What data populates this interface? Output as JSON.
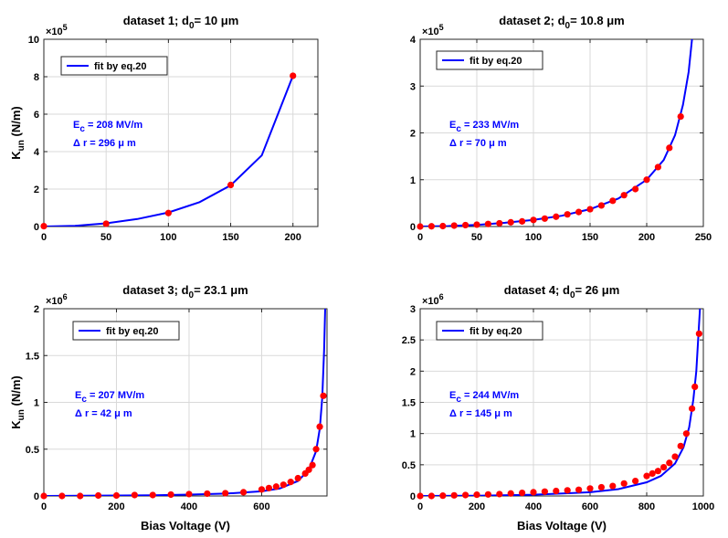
{
  "chart_data": [
    {
      "type": "scatter+line",
      "title": "dataset 1;    d",
      "title_sub": "0",
      "title_tail": "= 10 μm",
      "xlabel": "",
      "ylabel": "K",
      "ylabel_sub": "un",
      "ylabel_tail": "   (N/m)",
      "xlim": [
        0,
        220
      ],
      "ylim": [
        0,
        10
      ],
      "xticks": [
        0,
        50,
        100,
        150,
        200
      ],
      "yticks": [
        0,
        2,
        4,
        6,
        8,
        10
      ],
      "xtick_labels": [
        "0",
        "50",
        "100",
        "150",
        "200"
      ],
      "ytick_labels": [
        "0",
        "2",
        "4",
        "6",
        "8",
        "10"
      ],
      "y_exponent_base": "×10",
      "y_exponent_power": "5",
      "legend": "fit by eq.20",
      "annotation_ec": "E",
      "annotation_ec_sub": "c",
      "annotation_ec_tail": " = 208 MV/m",
      "annotation_dr": "Δ r = 296 μ m",
      "series": [
        {
          "name": "data",
          "x": [
            0,
            50,
            100,
            150,
            200
          ],
          "y": [
            0.02,
            0.15,
            0.72,
            2.22,
            8.05
          ]
        },
        {
          "name": "fit by eq.20",
          "x": [
            0,
            25,
            50,
            75,
            100,
            125,
            150,
            175,
            200
          ],
          "y": [
            0.0,
            0.04,
            0.17,
            0.4,
            0.75,
            1.3,
            2.2,
            3.8,
            8.05
          ]
        }
      ]
    },
    {
      "type": "scatter+line",
      "title": "dataset 2;    d",
      "title_sub": "0",
      "title_tail": "= 10.8 μm",
      "xlabel": "",
      "ylabel": "",
      "xlim": [
        0,
        250
      ],
      "ylim": [
        0,
        4
      ],
      "xticks": [
        0,
        50,
        100,
        150,
        200,
        250
      ],
      "yticks": [
        0,
        1,
        2,
        3,
        4
      ],
      "xtick_labels": [
        "0",
        "50",
        "100",
        "150",
        "200",
        "250"
      ],
      "ytick_labels": [
        "0",
        "1",
        "2",
        "3",
        "4"
      ],
      "y_exponent_base": "×10",
      "y_exponent_power": "5",
      "legend": "fit by eq.20",
      "annotation_ec": "E",
      "annotation_ec_sub": "c",
      "annotation_ec_tail": " = 233 MV/m",
      "annotation_dr": "Δ r = 70 μ m",
      "series": [
        {
          "name": "data",
          "x": [
            0,
            10,
            20,
            30,
            40,
            50,
            60,
            70,
            80,
            90,
            100,
            110,
            120,
            130,
            140,
            150,
            160,
            170,
            180,
            190,
            200,
            210,
            220,
            230
          ],
          "y": [
            0.0,
            0.005,
            0.01,
            0.02,
            0.03,
            0.04,
            0.055,
            0.07,
            0.09,
            0.11,
            0.14,
            0.17,
            0.21,
            0.26,
            0.31,
            0.37,
            0.45,
            0.55,
            0.67,
            0.8,
            1.0,
            1.27,
            1.68,
            2.35
          ]
        },
        {
          "name": "fit by eq.20",
          "x": [
            0,
            25,
            50,
            75,
            100,
            125,
            150,
            175,
            200,
            215,
            225,
            232,
            237,
            240
          ],
          "y": [
            0.0,
            0.01,
            0.035,
            0.08,
            0.14,
            0.23,
            0.37,
            0.6,
            1.0,
            1.42,
            1.95,
            2.6,
            3.3,
            4.0
          ]
        }
      ]
    },
    {
      "type": "scatter+line",
      "title": "dataset 3;    d",
      "title_sub": "0",
      "title_tail": "= 23.1 μm",
      "xlabel": "Bias Voltage (V)",
      "ylabel": "K",
      "ylabel_sub": "un",
      "ylabel_tail": "   (N/m)",
      "xlim": [
        0,
        780
      ],
      "ylim": [
        0,
        2
      ],
      "xticks": [
        0,
        200,
        400,
        600
      ],
      "yticks": [
        0,
        0.5,
        1,
        1.5,
        2
      ],
      "xtick_labels": [
        "0",
        "200",
        "400",
        "600"
      ],
      "ytick_labels": [
        "0",
        "0.5",
        "1",
        "1.5",
        "2"
      ],
      "y_exponent_base": "×10",
      "y_exponent_power": "6",
      "legend": "fit by eq.20",
      "annotation_ec": "E",
      "annotation_ec_sub": "c",
      "annotation_ec_tail": " = 207 MV/m",
      "annotation_dr": "Δ r = 42 μ m",
      "series": [
        {
          "name": "data",
          "x": [
            0,
            50,
            100,
            150,
            200,
            250,
            300,
            350,
            400,
            450,
            500,
            550,
            600,
            620,
            640,
            660,
            680,
            700,
            720,
            730,
            740,
            750,
            760,
            770
          ],
          "y": [
            0.0,
            0.0,
            0.0,
            0.005,
            0.005,
            0.01,
            0.01,
            0.015,
            0.02,
            0.025,
            0.03,
            0.04,
            0.07,
            0.085,
            0.1,
            0.12,
            0.15,
            0.19,
            0.24,
            0.28,
            0.33,
            0.5,
            0.74,
            1.07
          ]
        },
        {
          "name": "fit by eq.20",
          "x": [
            0,
            100,
            200,
            300,
            400,
            500,
            600,
            650,
            700,
            730,
            750,
            760,
            767,
            772,
            775
          ],
          "y": [
            0.0,
            0.002,
            0.005,
            0.008,
            0.015,
            0.025,
            0.05,
            0.08,
            0.16,
            0.28,
            0.48,
            0.72,
            1.05,
            1.55,
            2.0
          ]
        }
      ]
    },
    {
      "type": "scatter+line",
      "title": "dataset 4;    d",
      "title_sub": "0",
      "title_tail": "= 26 μm",
      "xlabel": "Bias Voltage (V)",
      "ylabel": "",
      "xlim": [
        0,
        1000
      ],
      "ylim": [
        0,
        3
      ],
      "xticks": [
        0,
        200,
        400,
        600,
        800,
        1000
      ],
      "yticks": [
        0,
        0.5,
        1,
        1.5,
        2,
        2.5,
        3
      ],
      "xtick_labels": [
        "0",
        "200",
        "400",
        "600",
        "800",
        "1000"
      ],
      "ytick_labels": [
        "0",
        "0.5",
        "1",
        "1.5",
        "2",
        "2.5",
        "3"
      ],
      "y_exponent_base": "×10",
      "y_exponent_power": "6",
      "legend": "fit by eq.20",
      "annotation_ec": "E",
      "annotation_ec_sub": "c",
      "annotation_ec_tail": " = 244 MV/m",
      "annotation_dr": "Δ r = 145 μ m",
      "series": [
        {
          "name": "data",
          "x": [
            0,
            40,
            80,
            120,
            160,
            200,
            240,
            280,
            320,
            360,
            400,
            440,
            480,
            520,
            560,
            600,
            640,
            680,
            720,
            760,
            800,
            820,
            840,
            860,
            880,
            900,
            920,
            940,
            960,
            970
          ],
          "y": [
            0.0,
            0.0,
            0.005,
            0.01,
            0.015,
            0.02,
            0.025,
            0.03,
            0.04,
            0.05,
            0.06,
            0.07,
            0.08,
            0.09,
            0.1,
            0.12,
            0.14,
            0.16,
            0.2,
            0.24,
            0.32,
            0.36,
            0.4,
            0.46,
            0.53,
            0.63,
            0.8,
            1.0,
            1.4,
            1.75
          ]
        },
        {
          "name": "fit by eq.20",
          "x": [
            0,
            200,
            400,
            600,
            700,
            800,
            850,
            900,
            930,
            950,
            965,
            975,
            983,
            988
          ],
          "y": [
            0.0,
            0.005,
            0.02,
            0.06,
            0.11,
            0.22,
            0.32,
            0.52,
            0.78,
            1.1,
            1.55,
            2.0,
            2.6,
            3.0
          ]
        }
      ]
    }
  ],
  "extra_points": [
    [],
    [],
    [],
    [
      {
        "x": 985,
        "y": 2.6
      }
    ]
  ],
  "colors": {
    "fit": "#0000ff",
    "data": "#ff0000",
    "grid": "#d9d9d9",
    "axis": "#262626"
  }
}
